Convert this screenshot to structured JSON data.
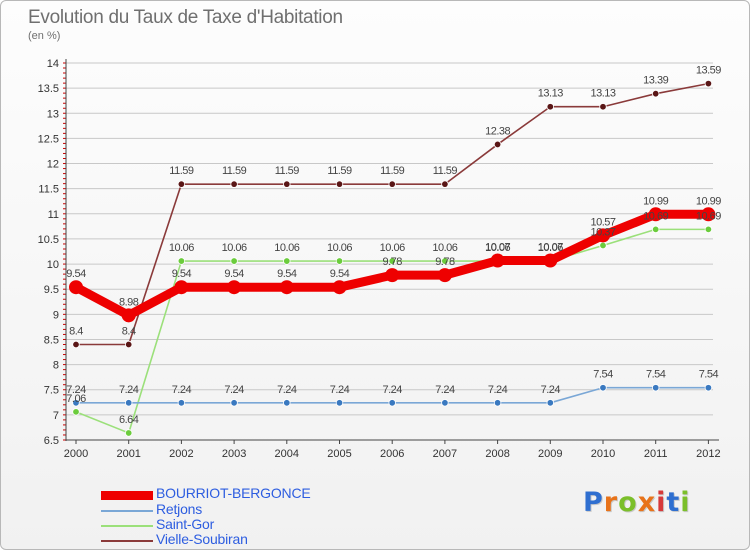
{
  "title": "Evolution du Taux de Taxe d'Habitation",
  "subtitle": "(en %)",
  "logo": "Proxiti",
  "colors": {
    "title": "#6f6f6f",
    "legend_text": "#2d5de0",
    "grid": "#c8c8c8",
    "axis_tick": "#cc0000"
  },
  "chart_data": {
    "type": "line",
    "x": [
      "2000",
      "2001",
      "2002",
      "2003",
      "2004",
      "2005",
      "2006",
      "2007",
      "2008",
      "2009",
      "2010",
      "2011",
      "2012"
    ],
    "ylim": [
      6.5,
      14
    ],
    "yticks": [
      "6.5",
      "7",
      "7.5",
      "8",
      "8.5",
      "9",
      "9.5",
      "10",
      "10.5",
      "11",
      "11.5",
      "12",
      "12.5",
      "13",
      "13.5",
      "14"
    ],
    "grid": "horizontal",
    "legend_position": "bottom-left",
    "series": [
      {
        "name": "BOURRIOT-BERGONCE",
        "color": "#ee0000",
        "marker_color": "#ee0000",
        "emphasis": "thick",
        "values": [
          9.54,
          8.98,
          9.54,
          9.54,
          9.54,
          9.54,
          9.78,
          9.78,
          10.07,
          10.07,
          10.57,
          10.99,
          10.99
        ],
        "labels": [
          "9.54",
          "8.98",
          "9.54",
          "9.54",
          "9.54",
          "9.54",
          "9.78",
          "9.78",
          "10.07",
          "10.07",
          "10.57",
          "10.99",
          "10.99"
        ]
      },
      {
        "name": "Retjons",
        "color": "#7aa7d6",
        "marker_color": "#3a79c0",
        "emphasis": "normal",
        "values": [
          7.24,
          7.24,
          7.24,
          7.24,
          7.24,
          7.24,
          7.24,
          7.24,
          7.24,
          7.24,
          7.54,
          7.54,
          7.54
        ],
        "labels": [
          "7.24",
          "7.24",
          "7.24",
          "7.24",
          "7.24",
          "7.24",
          "7.24",
          "7.24",
          "7.24",
          "7.24",
          "7.54",
          "7.54",
          "7.54"
        ]
      },
      {
        "name": "Saint-Gor",
        "color": "#9be07a",
        "marker_color": "#6bcc3c",
        "emphasis": "normal",
        "values": [
          7.06,
          6.64,
          10.06,
          10.06,
          10.06,
          10.06,
          10.06,
          10.06,
          10.06,
          10.06,
          10.37,
          10.69,
          10.69
        ],
        "labels": [
          "7.06",
          "6.64",
          "10.06",
          "10.06",
          "10.06",
          "10.06",
          "10.06",
          "10.06",
          "10.06",
          "10.06",
          "10.37",
          "10.69",
          "10.69"
        ]
      },
      {
        "name": "Vielle-Soubiran",
        "color": "#8a3a3a",
        "marker_color": "#5a1616",
        "emphasis": "normal",
        "values": [
          8.4,
          8.4,
          11.59,
          11.59,
          11.59,
          11.59,
          11.59,
          11.59,
          12.38,
          13.13,
          13.13,
          13.39,
          13.59
        ],
        "labels": [
          "8.4",
          "8.4",
          "11.59",
          "11.59",
          "11.59",
          "11.59",
          "11.59",
          "11.59",
          "12.38",
          "13.13",
          "13.13",
          "13.39",
          "13.59"
        ]
      }
    ]
  }
}
